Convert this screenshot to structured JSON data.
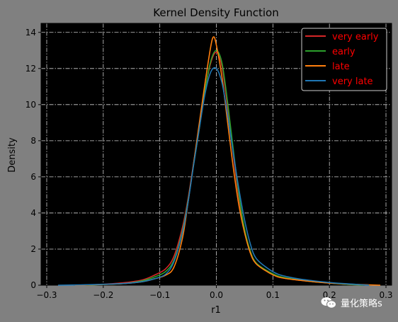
{
  "chart_data": {
    "type": "line",
    "title": "Kernel Density Function",
    "xlabel": "r1",
    "ylabel": "Density",
    "xlim": [
      -0.31,
      0.31
    ],
    "ylim": [
      0,
      14.5
    ],
    "xticks": [
      -0.3,
      -0.2,
      -0.1,
      0.0,
      0.1,
      0.2,
      0.3
    ],
    "xtick_labels": [
      "−0.3",
      "−0.2",
      "−0.1",
      "0.0",
      "0.1",
      "0.2",
      "0.3"
    ],
    "yticks": [
      0,
      2,
      4,
      6,
      8,
      10,
      12,
      14
    ],
    "ytick_labels": [
      "0",
      "2",
      "4",
      "6",
      "8",
      "10",
      "12",
      "14"
    ],
    "grid": true,
    "legend_position": "top-right",
    "background": "#000000",
    "legend_text_color": "#ff0000",
    "series": [
      {
        "name": "very early",
        "color": "#d62728",
        "x": [
          -0.23,
          -0.2,
          -0.16,
          -0.13,
          -0.11,
          -0.09,
          -0.075,
          -0.06,
          -0.05,
          -0.04,
          -0.03,
          -0.02,
          -0.01,
          0.0,
          0.01,
          0.02,
          0.03,
          0.04,
          0.05,
          0.06,
          0.07,
          0.09,
          0.11,
          0.14,
          0.17,
          0.2,
          0.23,
          0.26
        ],
        "y": [
          0.0,
          0.05,
          0.15,
          0.3,
          0.55,
          0.9,
          1.6,
          3.2,
          4.8,
          6.8,
          8.8,
          10.8,
          12.3,
          12.9,
          12.1,
          9.8,
          7.2,
          4.8,
          3.0,
          1.8,
          1.2,
          0.75,
          0.45,
          0.3,
          0.2,
          0.12,
          0.05,
          0.0
        ]
      },
      {
        "name": "early",
        "color": "#2ca02c",
        "x": [
          -0.23,
          -0.2,
          -0.16,
          -0.13,
          -0.11,
          -0.09,
          -0.075,
          -0.06,
          -0.05,
          -0.04,
          -0.03,
          -0.02,
          -0.01,
          0.0,
          0.01,
          0.02,
          0.03,
          0.04,
          0.05,
          0.06,
          0.07,
          0.09,
          0.11,
          0.14,
          0.17,
          0.2,
          0.23,
          0.26
        ],
        "y": [
          0.0,
          0.04,
          0.1,
          0.25,
          0.45,
          0.75,
          1.4,
          3.0,
          4.7,
          6.7,
          8.7,
          10.8,
          12.4,
          13.0,
          12.3,
          10.1,
          7.5,
          5.0,
          3.1,
          1.9,
          1.25,
          0.8,
          0.5,
          0.32,
          0.2,
          0.12,
          0.05,
          0.0
        ]
      },
      {
        "name": "late",
        "color": "#ff7f0e",
        "x": [
          -0.25,
          -0.2,
          -0.16,
          -0.13,
          -0.11,
          -0.09,
          -0.075,
          -0.06,
          -0.05,
          -0.04,
          -0.03,
          -0.02,
          -0.01,
          -0.005,
          0.0,
          0.01,
          0.02,
          0.03,
          0.04,
          0.05,
          0.06,
          0.07,
          0.09,
          0.11,
          0.14,
          0.17,
          0.2,
          0.23,
          0.26,
          0.29
        ],
        "y": [
          0.0,
          0.04,
          0.1,
          0.2,
          0.35,
          0.55,
          1.0,
          2.6,
          4.6,
          6.8,
          9.0,
          11.2,
          13.2,
          13.75,
          13.3,
          11.5,
          9.0,
          6.5,
          4.4,
          2.9,
          1.8,
          1.2,
          0.75,
          0.45,
          0.3,
          0.2,
          0.12,
          0.07,
          0.03,
          0.0
        ]
      },
      {
        "name": "very late",
        "color": "#1f77b4",
        "x": [
          -0.28,
          -0.24,
          -0.2,
          -0.16,
          -0.13,
          -0.11,
          -0.09,
          -0.075,
          -0.06,
          -0.05,
          -0.04,
          -0.03,
          -0.02,
          -0.01,
          0.0,
          0.01,
          0.02,
          0.03,
          0.04,
          0.05,
          0.06,
          0.07,
          0.09,
          0.11,
          0.14,
          0.17,
          0.2,
          0.23,
          0.27
        ],
        "y": [
          0.0,
          0.02,
          0.05,
          0.1,
          0.2,
          0.35,
          0.6,
          1.3,
          2.9,
          4.6,
          6.7,
          8.7,
          10.6,
          11.8,
          12.0,
          11.2,
          9.4,
          7.3,
          5.3,
          3.6,
          2.3,
          1.5,
          0.95,
          0.6,
          0.38,
          0.25,
          0.15,
          0.08,
          0.0
        ]
      }
    ]
  },
  "watermark": {
    "text": "量化策略s",
    "icon": "wechat-icon"
  }
}
